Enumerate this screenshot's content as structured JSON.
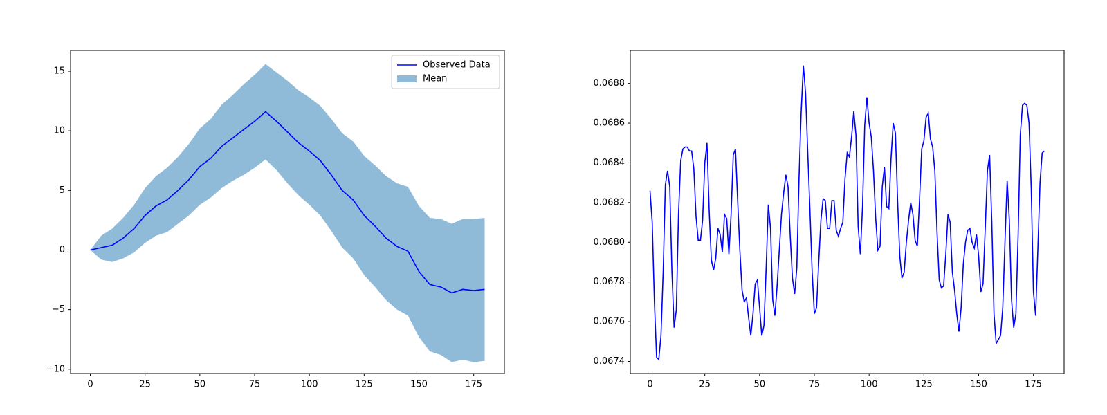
{
  "chart_data": [
    {
      "type": "line",
      "legend": "upper right",
      "xlim": [
        -9,
        189
      ],
      "xticks": [
        0,
        25,
        50,
        75,
        100,
        125,
        150,
        175
      ],
      "ylim": [
        -10.36,
        16.74
      ],
      "yticks": [
        {
          "value": -10,
          "label": "−10"
        },
        {
          "value": -5,
          "label": "−5"
        },
        0,
        5,
        10,
        15
      ],
      "x": [
        0,
        5,
        10,
        15,
        20,
        25,
        30,
        35,
        40,
        45,
        50,
        55,
        60,
        65,
        70,
        75,
        80,
        85,
        90,
        95,
        100,
        105,
        110,
        115,
        120,
        125,
        130,
        135,
        140,
        145,
        150,
        155,
        160,
        165,
        170,
        175,
        180
      ],
      "series": [
        {
          "name": "Observed Data",
          "color": "#0000ff",
          "values": [
            0,
            0.2,
            0.4,
            1.0,
            1.8,
            2.9,
            3.7,
            4.2,
            5.0,
            5.9,
            7.0,
            7.7,
            8.7,
            9.4,
            10.1,
            10.8,
            11.6,
            10.8,
            9.9,
            9.0,
            8.3,
            7.5,
            6.3,
            5.0,
            4.2,
            2.9,
            2.0,
            1.0,
            0.3,
            -0.1,
            -1.8,
            -2.9,
            -3.1,
            -3.6,
            -3.3,
            -3.4,
            -3.3
          ]
        },
        {
          "name": "Mean",
          "color": "#1f77b4",
          "alpha": 0.5,
          "upper": [
            0,
            1.2,
            1.8,
            2.7,
            3.8,
            5.2,
            6.2,
            6.9,
            7.8,
            8.9,
            10.2,
            11.0,
            12.2,
            13.0,
            13.9,
            14.7,
            15.6,
            14.9,
            14.2,
            13.4,
            12.8,
            12.1,
            11.0,
            9.8,
            9.1,
            7.9,
            7.1,
            6.2,
            5.6,
            5.3,
            3.7,
            2.7,
            2.6,
            2.2,
            2.6,
            2.6,
            2.7
          ],
          "lower": [
            0,
            -0.8,
            -1.0,
            -0.7,
            -0.2,
            0.6,
            1.2,
            1.5,
            2.2,
            2.9,
            3.8,
            4.4,
            5.2,
            5.8,
            6.3,
            6.9,
            7.6,
            6.7,
            5.6,
            4.6,
            3.8,
            2.9,
            1.6,
            0.2,
            -0.7,
            -2.1,
            -3.1,
            -4.2,
            -5.0,
            -5.5,
            -7.3,
            -8.5,
            -8.8,
            -9.4,
            -9.2,
            -9.4,
            -9.3
          ]
        }
      ]
    },
    {
      "type": "line",
      "xlim": [
        -9,
        189
      ],
      "xticks": [
        0,
        25,
        50,
        75,
        100,
        125,
        150,
        175
      ],
      "ylim": [
        0.067339,
        0.068966
      ],
      "yticks": [
        0.0674,
        0.0676,
        0.0678,
        {
          "value": 0.068,
          "label": "0.0680"
        },
        0.0682,
        0.0684,
        0.0686,
        0.0688
      ],
      "x": [
        0,
        1,
        2,
        3,
        4,
        5,
        6,
        7,
        8,
        9,
        10,
        11,
        12,
        13,
        14,
        15,
        16,
        17,
        18,
        19,
        20,
        21,
        22,
        23,
        24,
        25,
        26,
        27,
        28,
        29,
        30,
        31,
        32,
        33,
        34,
        35,
        36,
        37,
        38,
        39,
        40,
        41,
        42,
        43,
        44,
        45,
        46,
        47,
        48,
        49,
        50,
        51,
        52,
        53,
        54,
        55,
        56,
        57,
        58,
        59,
        60,
        61,
        62,
        63,
        64,
        65,
        66,
        67,
        68,
        69,
        70,
        71,
        72,
        73,
        74,
        75,
        76,
        77,
        78,
        79,
        80,
        81,
        82,
        83,
        84,
        85,
        86,
        87,
        88,
        89,
        90,
        91,
        92,
        93,
        94,
        95,
        96,
        97,
        98,
        99,
        100,
        101,
        102,
        103,
        104,
        105,
        106,
        107,
        108,
        109,
        110,
        111,
        112,
        113,
        114,
        115,
        116,
        117,
        118,
        119,
        120,
        121,
        122,
        123,
        124,
        125,
        126,
        127,
        128,
        129,
        130,
        131,
        132,
        133,
        134,
        135,
        136,
        137,
        138,
        139,
        140,
        141,
        142,
        143,
        144,
        145,
        146,
        147,
        148,
        149,
        150,
        151,
        152,
        153,
        154,
        155,
        156,
        157,
        158,
        159,
        160,
        161,
        162,
        163,
        164,
        165,
        166,
        167,
        168,
        169,
        170,
        171,
        172,
        173,
        174,
        175,
        176,
        177,
        178,
        179,
        180
      ],
      "series": [
        {
          "color": "#0000ff",
          "values": [
            0.06826,
            0.0681,
            0.0677,
            0.06742,
            0.06741,
            0.06753,
            0.06785,
            0.06829,
            0.06836,
            0.06828,
            0.06785,
            0.06757,
            0.06766,
            0.06814,
            0.06841,
            0.06847,
            0.06848,
            0.06848,
            0.06846,
            0.06846,
            0.06837,
            0.06813,
            0.06801,
            0.06801,
            0.06811,
            0.0684,
            0.0685,
            0.06816,
            0.06791,
            0.06786,
            0.06792,
            0.06807,
            0.06804,
            0.06795,
            0.06814,
            0.06812,
            0.06794,
            0.06814,
            0.06844,
            0.06847,
            0.06821,
            0.06796,
            0.06776,
            0.0677,
            0.06772,
            0.06762,
            0.06753,
            0.06764,
            0.06779,
            0.06781,
            0.06767,
            0.06753,
            0.06758,
            0.06787,
            0.06819,
            0.06807,
            0.06771,
            0.06763,
            0.06778,
            0.06796,
            0.06814,
            0.06825,
            0.06834,
            0.06828,
            0.06803,
            0.06782,
            0.06774,
            0.06787,
            0.06832,
            0.06866,
            0.06889,
            0.06875,
            0.06845,
            0.06816,
            0.06785,
            0.06764,
            0.06767,
            0.0679,
            0.06811,
            0.06822,
            0.06821,
            0.06807,
            0.06807,
            0.06821,
            0.06821,
            0.06806,
            0.06803,
            0.06807,
            0.0681,
            0.06832,
            0.06845,
            0.06843,
            0.06853,
            0.06866,
            0.06854,
            0.06808,
            0.06794,
            0.06818,
            0.06859,
            0.06873,
            0.0686,
            0.06853,
            0.06836,
            0.06812,
            0.06796,
            0.06798,
            0.06828,
            0.06838,
            0.06818,
            0.06817,
            0.06842,
            0.0686,
            0.06855,
            0.06821,
            0.06793,
            0.06782,
            0.06785,
            0.068,
            0.06811,
            0.0682,
            0.06814,
            0.06801,
            0.06798,
            0.06821,
            0.06847,
            0.06851,
            0.06863,
            0.06865,
            0.06852,
            0.06848,
            0.06836,
            0.06805,
            0.06781,
            0.06777,
            0.06778,
            0.06794,
            0.06814,
            0.0681,
            0.06785,
            0.06776,
            0.06764,
            0.06755,
            0.06767,
            0.06789,
            0.068,
            0.06806,
            0.06807,
            0.068,
            0.06797,
            0.06804,
            0.06793,
            0.06775,
            0.06779,
            0.06807,
            0.06836,
            0.06844,
            0.0681,
            0.06764,
            0.06749,
            0.06751,
            0.06753,
            0.06767,
            0.068,
            0.06831,
            0.06811,
            0.06771,
            0.06757,
            0.06764,
            0.06803,
            0.06854,
            0.06869,
            0.0687,
            0.06869,
            0.0686,
            0.06827,
            0.06775,
            0.06763,
            0.06796,
            0.0683,
            0.06845,
            0.06846
          ]
        }
      ]
    }
  ]
}
